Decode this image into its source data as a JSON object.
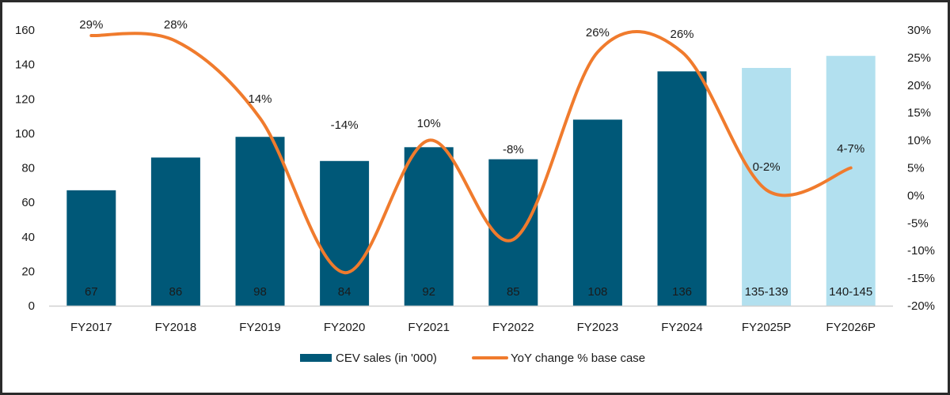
{
  "chart_data": {
    "type": "bar+line",
    "categories": [
      "FY2017",
      "FY2018",
      "FY2019",
      "FY2020",
      "FY2021",
      "FY2022",
      "FY2023",
      "FY2024",
      "FY2025P",
      "FY2026P"
    ],
    "series": [
      {
        "name": "CEV sales (in '000)",
        "type": "bar",
        "axis": "left",
        "values": [
          67,
          86,
          98,
          84,
          92,
          85,
          108,
          136,
          138,
          145
        ],
        "labels": [
          "67",
          "86",
          "98",
          "84",
          "92",
          "85",
          "108",
          "136",
          "135-139",
          "140-145"
        ],
        "projected": [
          false,
          false,
          false,
          false,
          false,
          false,
          false,
          false,
          true,
          true
        ]
      },
      {
        "name": "YoY change % base case",
        "type": "line",
        "smooth": true,
        "axis": "right",
        "values": [
          29,
          28,
          14,
          -14,
          10,
          -8,
          26,
          26,
          1,
          5
        ],
        "labels": [
          "29%",
          "28%",
          "14%",
          "-14%",
          "10%",
          "-8%",
          "26%",
          "26%",
          "0-2%",
          "4-7%"
        ]
      }
    ],
    "y_left": {
      "lim": [
        0,
        160
      ],
      "ticks": [
        "0",
        "20",
        "40",
        "60",
        "80",
        "100",
        "120",
        "140",
        "160"
      ]
    },
    "y_right": {
      "lim": [
        -20,
        30
      ],
      "ticks": [
        "-20%",
        "-15%",
        "-10%",
        "-5%",
        "0%",
        "5%",
        "10%",
        "15%",
        "20%",
        "25%",
        "30%"
      ]
    },
    "grid": false,
    "legend": {
      "position": "bottom",
      "items": [
        "CEV sales (in '000)",
        "YoY change % base case"
      ]
    },
    "colors": {
      "bar": "#005878",
      "bar_projected": "#b2e0ef",
      "line": "#f07b2d",
      "bar_label_dark": "#ffffff",
      "bar_label_light": "#1a1a1a"
    }
  }
}
